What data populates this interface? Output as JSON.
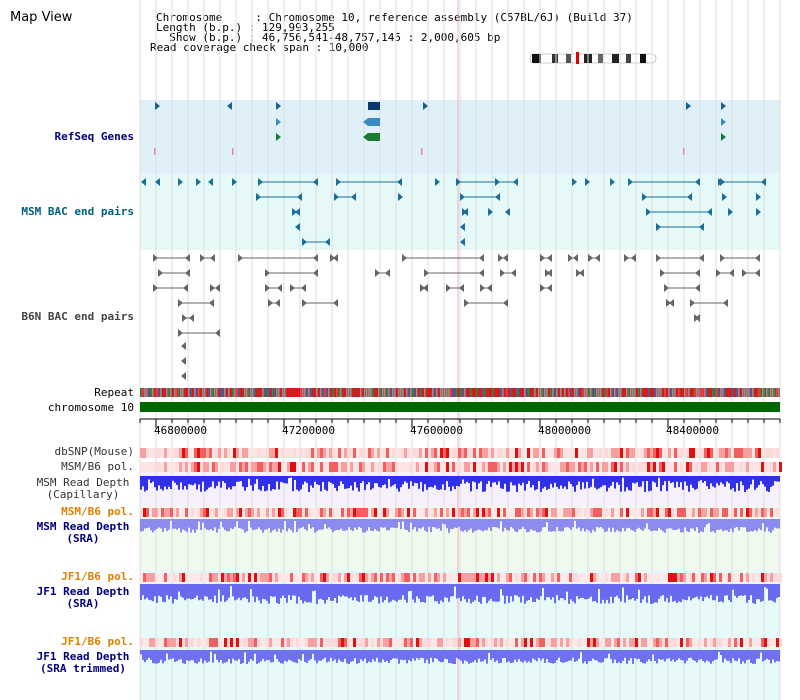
{
  "header": {
    "title": "Map View",
    "chromosome_line": "Chromosome     : Chromosome 10, reference assembly (C57BL/6J) (Build 37)",
    "length_line": "Length (b.p.) : 129,993,255",
    "show_line": "  Show (b.p.) : 46,756,541-48,757,145 : 2,000,605 bp",
    "span_line": "Read coverage check span : 10,000"
  },
  "tracks": {
    "refseq": "RefSeq Genes",
    "msm_bac": "MSM BAC end pairs",
    "b6n_bac": "B6N BAC end pairs",
    "repeat": "Repeat",
    "chromosome": "chromosome 10",
    "dbsnp": "dbSNP(Mouse)",
    "msm_b6_pol_1": "MSM/B6 pol.",
    "msm_depth_cap_1": "MSM Read Depth",
    "msm_depth_cap_2": "(Capillary)",
    "msm_b6_pol_2": "MSM/B6 pol.",
    "msm_depth_sra_1": "MSM Read Depth",
    "msm_depth_sra_2": "(SRA)",
    "jf1_pol_1": "JF1/B6 pol.",
    "jf1_depth_sra_1": "JF1 Read Depth",
    "jf1_depth_sra_2": "(SRA)",
    "jf1_pol_2": "JF1/B6 pol.",
    "jf1_depth_trim_1": "JF1 Read Depth",
    "jf1_depth_trim_2": "(SRA trimmed)"
  },
  "axis": {
    "ticks": [
      "46800000",
      "47200000",
      "47600000",
      "48000000",
      "48400000"
    ]
  },
  "colors": {
    "refseq_bg": "#dff0f8",
    "msm_bac_bg": "#e6f9f9",
    "feature_blue": "#1a5f8a",
    "feature_gray": "#666666",
    "chrom_green": "#006600",
    "label_navy": "#000080",
    "label_teal": "#006080",
    "label_orange": "#e08000",
    "depth_blue": "#4a4ae8",
    "depth_light": "#8c8cf0"
  }
}
